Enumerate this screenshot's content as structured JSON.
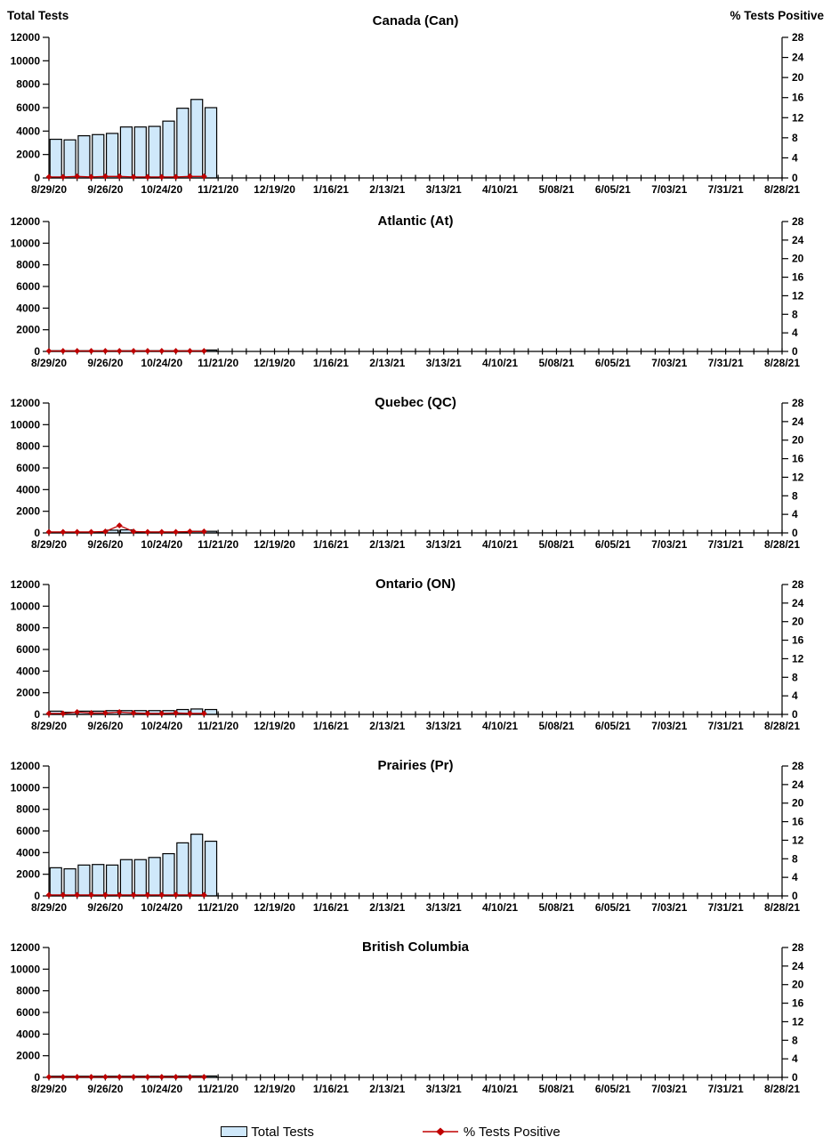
{
  "chart_data": {
    "type": "combo",
    "description": "Six stacked weekly bar+line panels: Total Tests (bars, left axis) and % Tests Positive (line, right axis) by region",
    "shared": {
      "x": {
        "n_weeks": 52,
        "labels": [
          "8/29/20",
          "9/26/20",
          "10/24/20",
          "11/21/20",
          "12/19/20",
          "1/16/21",
          "2/13/21",
          "3/13/21",
          "4/10/21",
          "5/08/21",
          "6/05/21",
          "7/03/21",
          "7/31/21",
          "8/28/21"
        ],
        "label_every_n_weeks": 4,
        "data_weeks": [
          "8/29/20",
          "9/05/20",
          "9/12/20",
          "9/19/20",
          "9/26/20",
          "10/03/20",
          "10/10/20",
          "10/17/20",
          "10/24/20",
          "10/31/20",
          "11/07/20",
          "11/14/20"
        ]
      },
      "left_axis": {
        "title": "Total Tests",
        "min": 0,
        "max": 12000,
        "step": 2000
      },
      "right_axis": {
        "title": "% Tests Positive",
        "min": 0,
        "max": 28,
        "step": 4
      },
      "colors": {
        "bar_fill": "#cfe8fa",
        "bar_stroke": "#000000",
        "line": "#c00000"
      }
    },
    "panels": [
      {
        "id": "canada",
        "type": "bar+line",
        "title": "Canada (Can)",
        "show_axis_titles": true,
        "bars": [
          3300,
          3250,
          3600,
          3700,
          3800,
          4350,
          4350,
          4400,
          4850,
          5950,
          6700,
          6000
        ],
        "line": [
          0.2,
          0.2,
          0.3,
          0.2,
          0.3,
          0.3,
          0.2,
          0.2,
          0.2,
          0.2,
          0.3,
          0.3
        ]
      },
      {
        "id": "atlantic",
        "type": "bar+line",
        "title": "Atlantic (At)",
        "show_axis_titles": false,
        "bars": [
          30,
          30,
          30,
          30,
          40,
          40,
          40,
          40,
          40,
          50,
          60,
          130
        ],
        "line": [
          0.1,
          0.1,
          0.1,
          0.1,
          0.1,
          0.1,
          0.1,
          0.1,
          0.1,
          0.1,
          0.1,
          0.1
        ]
      },
      {
        "id": "quebec",
        "type": "bar+line",
        "title": "Quebec (QC)",
        "show_axis_titles": false,
        "bars": [
          60,
          60,
          60,
          80,
          250,
          280,
          100,
          80,
          80,
          100,
          150,
          150
        ],
        "line": [
          0.2,
          0.2,
          0.2,
          0.2,
          0.3,
          1.6,
          0.3,
          0.2,
          0.2,
          0.2,
          0.3,
          0.3
        ]
      },
      {
        "id": "ontario",
        "type": "bar+line",
        "title": "Ontario (ON)",
        "show_axis_titles": false,
        "bars": [
          300,
          200,
          300,
          300,
          350,
          350,
          350,
          350,
          350,
          450,
          500,
          450
        ],
        "line": [
          0.2,
          0.2,
          0.5,
          0.3,
          0.3,
          0.5,
          0.3,
          0.2,
          0.2,
          0.3,
          0.2,
          0.2
        ]
      },
      {
        "id": "prairies",
        "type": "bar+line",
        "title": "Prairies (Pr)",
        "show_axis_titles": false,
        "bars": [
          2600,
          2500,
          2850,
          2900,
          2850,
          3350,
          3350,
          3550,
          3900,
          4900,
          5700,
          5050
        ],
        "line": [
          0.2,
          0.2,
          0.2,
          0.2,
          0.2,
          0.2,
          0.2,
          0.2,
          0.2,
          0.2,
          0.2,
          0.2
        ]
      },
      {
        "id": "british-columbia",
        "type": "bar+line",
        "title": "British Columbia",
        "show_axis_titles": false,
        "bars": [
          110,
          100,
          110,
          110,
          110,
          110,
          110,
          110,
          110,
          120,
          130,
          130
        ],
        "line": [
          0.1,
          0.1,
          0.1,
          0.1,
          0.1,
          0.1,
          0.1,
          0.1,
          0.1,
          0.1,
          0.1,
          0.1
        ]
      }
    ],
    "legend": [
      {
        "label": "Total Tests",
        "swatch": "bar"
      },
      {
        "label": "% Tests Positive",
        "swatch": "line"
      }
    ]
  }
}
